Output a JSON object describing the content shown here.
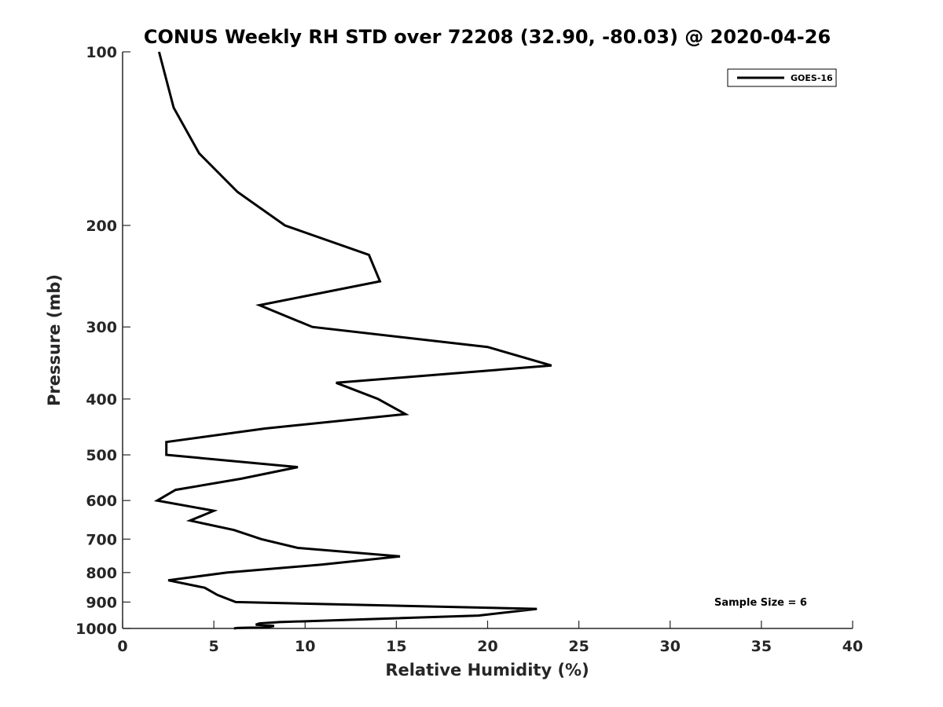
{
  "chart_data": {
    "type": "line",
    "title": "CONUS Weekly RH STD over 72208 (32.90, -80.03) @ 2020-04-26",
    "xlabel": "Relative Humidity (%)",
    "ylabel": "Pressure (mb)",
    "xlim": [
      0,
      40
    ],
    "ylim": [
      1000,
      100
    ],
    "yscale": "log",
    "xticks": [
      "0",
      "5",
      "10",
      "15",
      "20",
      "25",
      "30",
      "35",
      "40"
    ],
    "xtick_values": [
      0,
      5,
      10,
      15,
      20,
      25,
      30,
      35,
      40
    ],
    "yticks": [
      "100",
      "200",
      "300",
      "400",
      "500",
      "600",
      "700",
      "800",
      "900",
      "1000"
    ],
    "ytick_values": [
      100,
      200,
      300,
      400,
      500,
      600,
      700,
      800,
      900,
      1000
    ],
    "grid": false,
    "legend_position": "top-right",
    "series": [
      {
        "name": "GOES-16",
        "color": "#000000",
        "points": [
          [
            2.0,
            100
          ],
          [
            2.8,
            125
          ],
          [
            4.2,
            150
          ],
          [
            6.3,
            175
          ],
          [
            8.9,
            200
          ],
          [
            13.5,
            225
          ],
          [
            14.1,
            250
          ],
          [
            7.5,
            275
          ],
          [
            10.4,
            300
          ],
          [
            20.0,
            325
          ],
          [
            23.5,
            350
          ],
          [
            11.7,
            375
          ],
          [
            14.0,
            400
          ],
          [
            15.5,
            425
          ],
          [
            7.8,
            450
          ],
          [
            2.4,
            475
          ],
          [
            2.4,
            500
          ],
          [
            9.6,
            525
          ],
          [
            6.5,
            550
          ],
          [
            2.9,
            575
          ],
          [
            1.9,
            600
          ],
          [
            5.0,
            625
          ],
          [
            3.7,
            650
          ],
          [
            6.1,
            675
          ],
          [
            7.6,
            700
          ],
          [
            9.6,
            725
          ],
          [
            15.2,
            750
          ],
          [
            10.9,
            775
          ],
          [
            5.7,
            800
          ],
          [
            2.5,
            825
          ],
          [
            4.5,
            850
          ],
          [
            5.2,
            875
          ],
          [
            6.2,
            900
          ],
          [
            22.7,
            925
          ],
          [
            19.5,
            950
          ],
          [
            8.6,
            975
          ],
          [
            7.5,
            980
          ],
          [
            7.3,
            985
          ],
          [
            8.3,
            990
          ],
          [
            8.0,
            995
          ],
          [
            6.3,
            998
          ],
          [
            6.1,
            1000
          ]
        ]
      }
    ],
    "annotation": "Sample Size = 6"
  }
}
